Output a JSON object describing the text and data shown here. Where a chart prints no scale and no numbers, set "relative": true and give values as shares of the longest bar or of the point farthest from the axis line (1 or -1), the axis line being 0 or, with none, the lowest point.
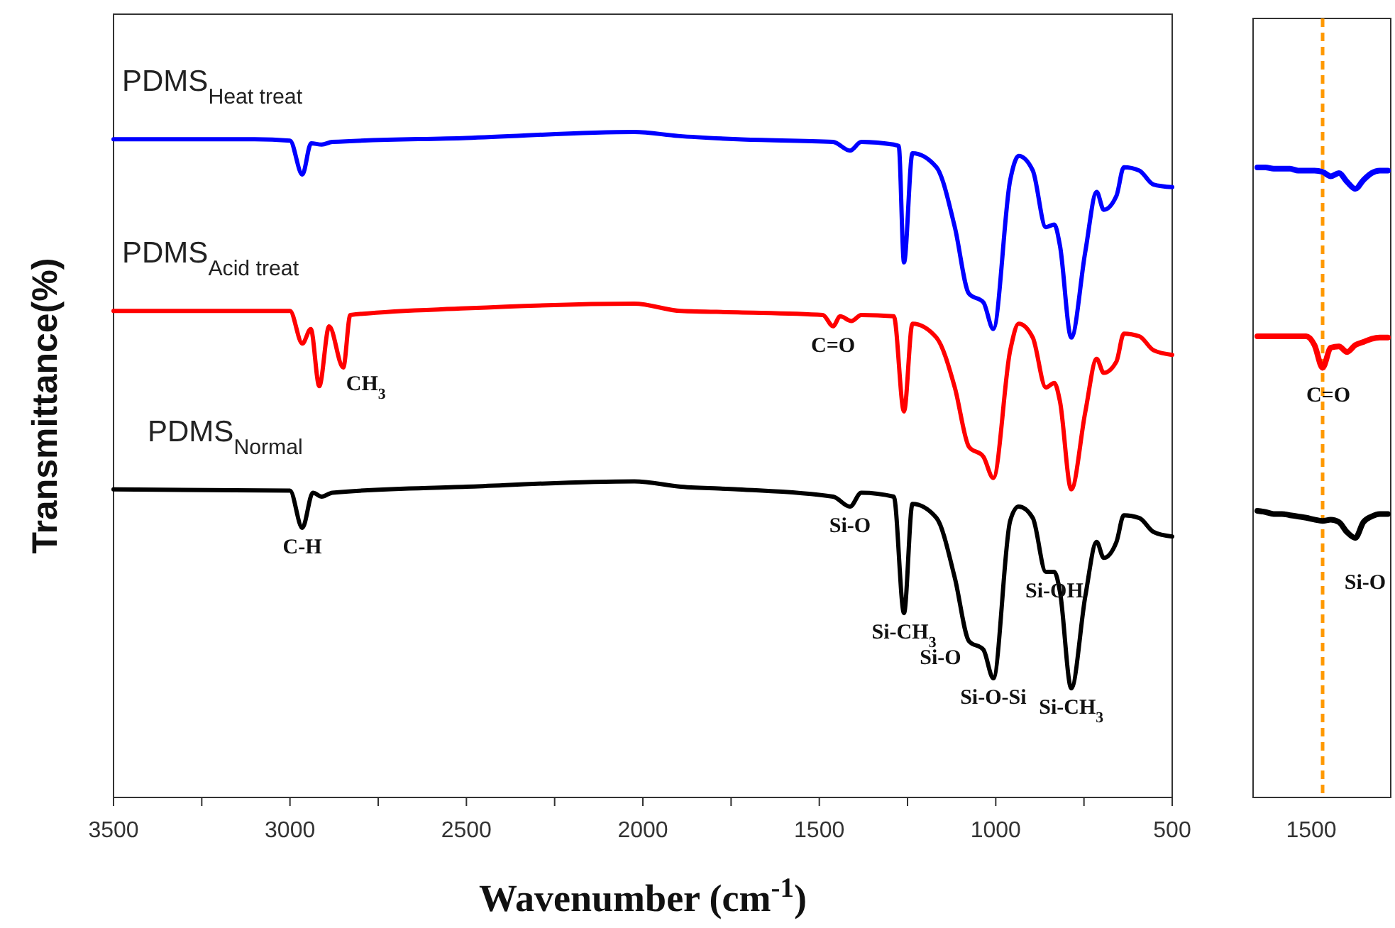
{
  "chart_data": [
    {
      "type": "line",
      "relative": true,
      "xlabel": "Wavenumber (cm$^{-1}$)",
      "ylabel": "Transmittance(%)",
      "xlim": [
        3500,
        500
      ],
      "xticks": [
        3500,
        {
          "value": 3250,
          "label": null
        },
        3000,
        {
          "value": 2750,
          "label": null
        },
        2500,
        {
          "value": 2250,
          "label": null
        },
        2000,
        {
          "value": 1750,
          "label": null
        },
        1500,
        {
          "value": 1250,
          "label": null
        },
        1000,
        {
          "value": 750,
          "label": null
        },
        500
      ],
      "series": [
        {
          "name": "PDMS$_{Heat treat}$",
          "color": "#0000ff",
          "x": [
            3500,
            3100,
            3000,
            2965,
            2940,
            2910,
            2880,
            2500,
            2024,
            1900,
            1731,
            1461,
            1413,
            1381,
            1289,
            1275,
            1260,
            1236,
            1168,
            1116,
            1076,
            1035,
            1007,
            959,
            935,
            895,
            858,
            834,
            818,
            786,
            746,
            714,
            694,
            658,
            637,
            593,
            553,
            500
          ],
          "values": [
            0.989,
            0.989,
            0.987,
            0.936,
            0.983,
            0.981,
            0.985,
            0.991,
            1.0,
            0.994,
            0.989,
            0.985,
            0.972,
            0.985,
            0.981,
            0.979,
            0.804,
            0.968,
            0.947,
            0.857,
            0.757,
            0.744,
            0.704,
            0.928,
            0.964,
            0.942,
            0.857,
            0.861,
            0.829,
            0.691,
            0.821,
            0.91,
            0.883,
            0.904,
            0.947,
            0.942,
            0.921,
            0.917
          ]
        },
        {
          "name": "PDMS$_{Acid treat}$",
          "color": "#ff0000",
          "x": [
            3500,
            3000,
            2965,
            2941,
            2917,
            2889,
            2849,
            2829,
            2500,
            2024,
            1892,
            1731,
            1490,
            1461,
            1441,
            1409,
            1381,
            1289,
            1260,
            1236,
            1168,
            1116,
            1076,
            1035,
            1007,
            959,
            935,
            895,
            858,
            834,
            818,
            786,
            746,
            714,
            694,
            658,
            637,
            593,
            553,
            500
          ],
          "values": [
            0.731,
            0.731,
            0.682,
            0.704,
            0.618,
            0.708,
            0.646,
            0.725,
            0.735,
            0.742,
            0.731,
            0.729,
            0.725,
            0.708,
            0.723,
            0.716,
            0.725,
            0.723,
            0.58,
            0.712,
            0.691,
            0.616,
            0.527,
            0.512,
            0.48,
            0.672,
            0.712,
            0.691,
            0.616,
            0.623,
            0.595,
            0.463,
            0.58,
            0.659,
            0.638,
            0.655,
            0.697,
            0.693,
            0.672,
            0.665
          ]
        },
        {
          "name": "PDMS$_{Normal}$",
          "color": "#000000",
          "x": [
            3500,
            3000,
            2965,
            2935,
            2910,
            2880,
            2500,
            2024,
            1892,
            1731,
            1461,
            1413,
            1381,
            1289,
            1260,
            1236,
            1168,
            1116,
            1076,
            1035,
            1007,
            959,
            935,
            895,
            858,
            834,
            818,
            786,
            746,
            714,
            694,
            658,
            637,
            593,
            553,
            500
          ],
          "values": [
            0.463,
            0.461,
            0.405,
            0.458,
            0.452,
            0.458,
            0.467,
            0.475,
            0.467,
            0.463,
            0.452,
            0.437,
            0.458,
            0.452,
            0.277,
            0.441,
            0.42,
            0.33,
            0.235,
            0.222,
            0.179,
            0.416,
            0.437,
            0.42,
            0.339,
            0.339,
            0.309,
            0.164,
            0.303,
            0.384,
            0.36,
            0.384,
            0.424,
            0.42,
            0.399,
            0.392
          ]
        }
      ],
      "annotations": [
        {
          "text": "C-H",
          "x": 2965,
          "y": 0.405
        },
        {
          "text": "CH$_{3}$",
          "x": 2849,
          "y": 0.646
        },
        {
          "text": "C=O",
          "x": 1461,
          "y": 0.708
        },
        {
          "text": "Si-O",
          "x": 1413,
          "y": 0.437
        },
        {
          "text": "Si-CH$_{3}$",
          "x": 1260,
          "y": 0.277
        },
        {
          "text": "Si-O",
          "x": 1076,
          "y": 0.235
        },
        {
          "text": "Si-O-Si",
          "x": 1007,
          "y": 0.179
        },
        {
          "text": "Si-OH",
          "x": 834,
          "y": 0.339
        },
        {
          "text": "Si-CH$_{3}$",
          "x": 786,
          "y": 0.164
        }
      ]
    },
    {
      "type": "line",
      "relative": true,
      "categories": [
        null,
        null,
        null,
        null,
        null,
        null,
        null,
        null,
        null,
        null,
        null,
        null,
        null,
        null,
        null,
        null,
        null
      ],
      "series": [
        {
          "color": "#0000ff",
          "values": [
            1.0,
            1.0,
            0.998,
            0.998,
            0.998,
            0.995,
            0.995,
            0.995,
            0.993,
            0.986,
            0.991,
            0.977,
            0.966,
            0.98,
            0.991,
            0.995,
            0.995
          ]
        },
        {
          "color": "#ff0000",
          "values": [
            0.732,
            0.732,
            0.732,
            0.732,
            0.732,
            0.732,
            0.732,
            0.718,
            0.682,
            0.714,
            0.716,
            0.707,
            0.718,
            0.723,
            0.728,
            0.73,
            0.73
          ]
        },
        {
          "color": "#000000",
          "values": [
            0.455,
            0.453,
            0.45,
            0.45,
            0.448,
            0.446,
            0.444,
            0.441,
            0.439,
            0.441,
            0.437,
            0.421,
            0.412,
            0.437,
            0.446,
            0.45,
            0.45
          ]
        }
      ],
      "annotations": [
        "C=O",
        "Si-O",
        "1500"
      ]
    }
  ]
}
